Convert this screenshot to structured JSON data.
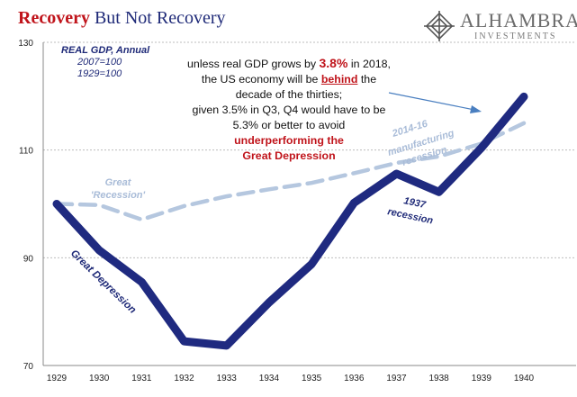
{
  "title": {
    "part1": "Recovery",
    "part2": "But Not Recovery"
  },
  "brand": {
    "name": "ALHAMBRA",
    "subtitle": "INVESTMENTS"
  },
  "legend_block": {
    "line1": "REAL GDP, Annual",
    "line2": "2007=100",
    "line3": "1929=100"
  },
  "note": {
    "line1_pre": "unless real GDP grows by ",
    "line1_val": "3.8%",
    "line1_post": " in 2018,",
    "line2_pre": "the US economy will be ",
    "line2_em": "behind",
    "line2_post": " the",
    "line3": "decade of the thirties;",
    "line4": "given 3.5% in Q3, Q4 would have to be",
    "line5": "5.3% or better to avoid",
    "line6": "underperforming the",
    "line7": "Great Depression"
  },
  "colors": {
    "depression_line": "#1f2a80",
    "recession_line": "#b5c7df",
    "title_red": "#c0141b",
    "title_navy": "#1f2a78",
    "grid": "#bdbdbd",
    "arrow": "#4a7fc0"
  },
  "chart_data": {
    "type": "line",
    "title": "Recovery But Not Recovery",
    "x": [
      "1929",
      "1930",
      "1931",
      "1932",
      "1933",
      "1934",
      "1935",
      "1936",
      "1937",
      "1938",
      "1939",
      "1940"
    ],
    "ylim": [
      70,
      130
    ],
    "yticks": [
      "70",
      "90",
      "110",
      "130"
    ],
    "grid": "horizontal dashed",
    "series": [
      {
        "name": "Great Depression",
        "values": [
          100,
          91.4,
          85.5,
          74.5,
          73.7,
          81.7,
          88.8,
          100.2,
          105.6,
          102.2,
          110.4,
          119.9
        ]
      },
      {
        "name": "Great 'Recession'",
        "values": [
          100,
          99.8,
          97.1,
          99.6,
          101.4,
          102.7,
          103.9,
          105.7,
          107.6,
          108.8,
          111.2,
          115.0
        ]
      }
    ],
    "annotations": {
      "depression_label": "Great Depression",
      "recession_label_1": "Great",
      "recession_label_2": "'Recession'",
      "recession_1937_line1": "1937",
      "recession_1937_line2": "recession",
      "mfg_line1": "2014-16",
      "mfg_line2": "manufacturing",
      "mfg_line3": "recession"
    }
  }
}
